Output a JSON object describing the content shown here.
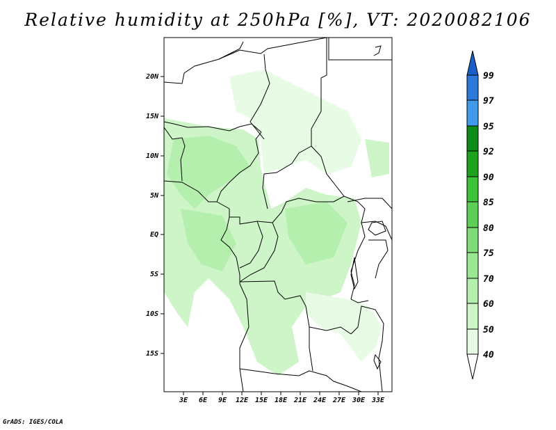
{
  "title": "Relative humidity at 250hPa [%], VT: 2020082106",
  "footer": "GrADS: IGES/COLA",
  "map": {
    "lat_range": [
      -20,
      24.5
    ],
    "lon_range": [
      0.5,
      35.5
    ],
    "lat_labels": [
      "20N",
      "15N",
      "10N",
      "5N",
      "EQ",
      "5S",
      "10S",
      "15S"
    ],
    "lon_labels": [
      "3E",
      "6E",
      "9E",
      "12E",
      "15E",
      "18E",
      "21E",
      "24E",
      "27E",
      "30E",
      "33E"
    ]
  },
  "colorbar": {
    "levels": [
      "40",
      "50",
      "60",
      "70",
      "75",
      "80",
      "85",
      "90",
      "92",
      "95",
      "97",
      "99"
    ],
    "colors": [
      "#ffffff",
      "#e7fbe5",
      "#cdf5c8",
      "#b4efad",
      "#9ae692",
      "#7fdb76",
      "#5fce56",
      "#3ec23a",
      "#1ea21d",
      "#0c8b16",
      "#3f9bea",
      "#2a79db",
      "#1a5fc7"
    ]
  },
  "humidity_colors": {
    "light": "#e7fbe5",
    "mid": "#cdf5c8",
    "dense": "#b4efad"
  },
  "border_color": "#000000"
}
